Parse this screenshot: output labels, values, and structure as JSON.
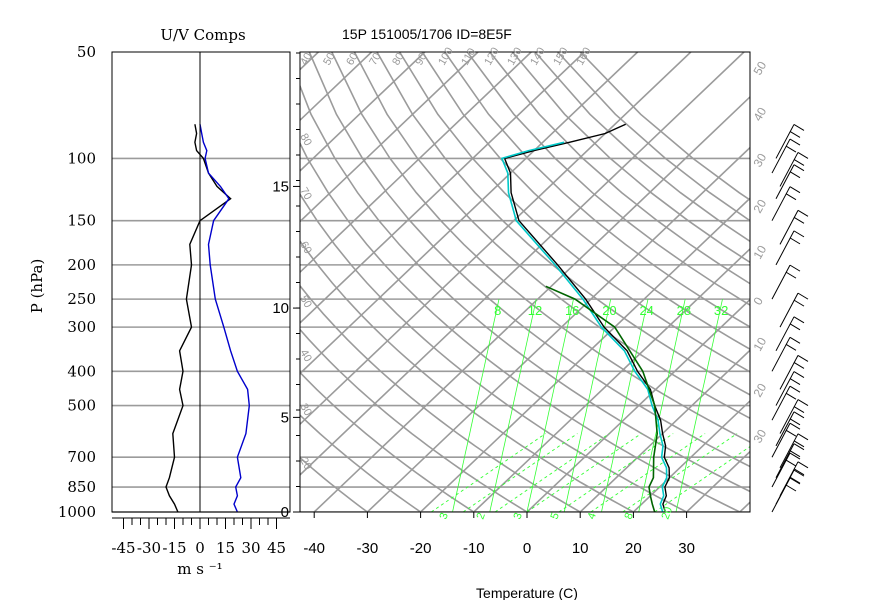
{
  "figure_title": "15P 151005/1706 ID=8E5F",
  "colors": {
    "grid": "#9b9b9b",
    "isotherm_text": "#9b9b9b",
    "mixing_ratio": "#33ff33",
    "sounding_temp": "#000000",
    "sounding_dew": "#00c8c8",
    "parcel": "#006400",
    "u_wind": "#000000",
    "v_wind": "#0000cc"
  },
  "chart_data": [
    {
      "type": "line",
      "title": "U/V Comps",
      "xlabel": "m s ⁻¹",
      "ylabel": "P (hPa)",
      "xlim": [
        -50,
        50
      ],
      "x_ticks": [
        "-45",
        "-30",
        "-15",
        "0",
        "15",
        "30",
        "45"
      ],
      "y_ticks": [
        "50",
        "100",
        "150",
        "200",
        "250",
        "300",
        "400",
        "500",
        "700",
        "850",
        "1000"
      ],
      "y_scale": "log",
      "ylim": [
        1000,
        50
      ],
      "grid": true,
      "series": [
        {
          "profile": "u",
          "pressure": [
            1000,
            950,
            900,
            850,
            800,
            700,
            600,
            500,
            450,
            400,
            350,
            300,
            250,
            200,
            175,
            150,
            130,
            120,
            110,
            100,
            95,
            90,
            85,
            80
          ],
          "values": [
            -13,
            -15,
            -18,
            -20,
            -18,
            -15,
            -16,
            -10,
            -12,
            -10,
            -12,
            -5,
            -8,
            -5,
            -6,
            0,
            18,
            10,
            5,
            2,
            -2,
            -3,
            -2,
            -3
          ]
        },
        {
          "profile": "v",
          "pressure": [
            1000,
            950,
            900,
            850,
            800,
            700,
            600,
            500,
            450,
            400,
            350,
            300,
            250,
            200,
            175,
            150,
            130,
            120,
            110,
            100,
            95,
            90,
            85,
            80
          ],
          "values": [
            22,
            20,
            22,
            21,
            24,
            22,
            27,
            29,
            28,
            22,
            18,
            14,
            9,
            6,
            5,
            8,
            17,
            12,
            5,
            3,
            4,
            2,
            1,
            0
          ]
        }
      ]
    },
    {
      "type": "line",
      "title": "",
      "xlabel": "Temperature (C)",
      "ylabel": "",
      "x_ticks": [
        "-40",
        "-30",
        "-20",
        "-10",
        "0",
        "10",
        "20",
        "30"
      ],
      "height_ticks": [
        "0",
        "5",
        "10",
        "15"
      ],
      "xlim": [
        -43,
        42
      ],
      "ylim": [
        1000,
        50
      ],
      "grid": true,
      "mixing_ratio_labels": [
        "8",
        "12",
        "16",
        "20",
        "24",
        "28",
        "32"
      ],
      "top_labels": [
        "40",
        "50",
        "60",
        "70",
        "80",
        "90",
        "100",
        "110",
        "120",
        "130",
        "140",
        "150",
        "160"
      ],
      "right_labels": [
        "50",
        "40",
        "30",
        "20",
        "10",
        "0",
        "10",
        "20",
        "30"
      ],
      "left_labels": [
        "80",
        "70",
        "60",
        "50",
        "40",
        "30",
        "20"
      ],
      "bottom_labels": [
        "3",
        "2",
        "3",
        "5",
        "4",
        "8",
        "20"
      ],
      "series": [
        {
          "profile": "temperature",
          "pressure": [
            1000,
            950,
            900,
            850,
            800,
            750,
            700,
            650,
            600,
            550,
            500,
            450,
            400,
            350,
            300,
            250,
            200,
            150,
            125,
            110,
            100,
            95,
            90,
            85,
            80
          ],
          "values": [
            26,
            24,
            23,
            21,
            20,
            18,
            15,
            13,
            10,
            7,
            3,
            -1,
            -7,
            -13,
            -22,
            -31,
            -43,
            -59,
            -66,
            -70,
            -74,
            -70,
            -65,
            -60,
            -58
          ]
        },
        {
          "profile": "dewpoint",
          "pressure": [
            1000,
            950,
            900,
            850,
            800,
            750,
            700,
            650,
            600,
            550,
            500,
            450,
            400,
            350,
            300,
            250,
            200,
            150,
            125,
            110,
            100,
            95,
            90
          ],
          "values": [
            25.5,
            23.5,
            22.5,
            20.5,
            19.5,
            17.5,
            14.5,
            12.5,
            9.5,
            6.5,
            2.5,
            -1.5,
            -7.5,
            -13.5,
            -22.5,
            -31.5,
            -43.5,
            -59.5,
            -66.5,
            -70.5,
            -74.5,
            -71,
            -66
          ]
        },
        {
          "profile": "parcel",
          "pressure": [
            1000,
            950,
            900,
            850,
            800,
            700,
            600,
            500,
            400,
            300,
            250,
            230
          ],
          "values": [
            24,
            22,
            20,
            18,
            17,
            13,
            9,
            3,
            -6,
            -20,
            -33,
            -41
          ]
        }
      ]
    }
  ]
}
